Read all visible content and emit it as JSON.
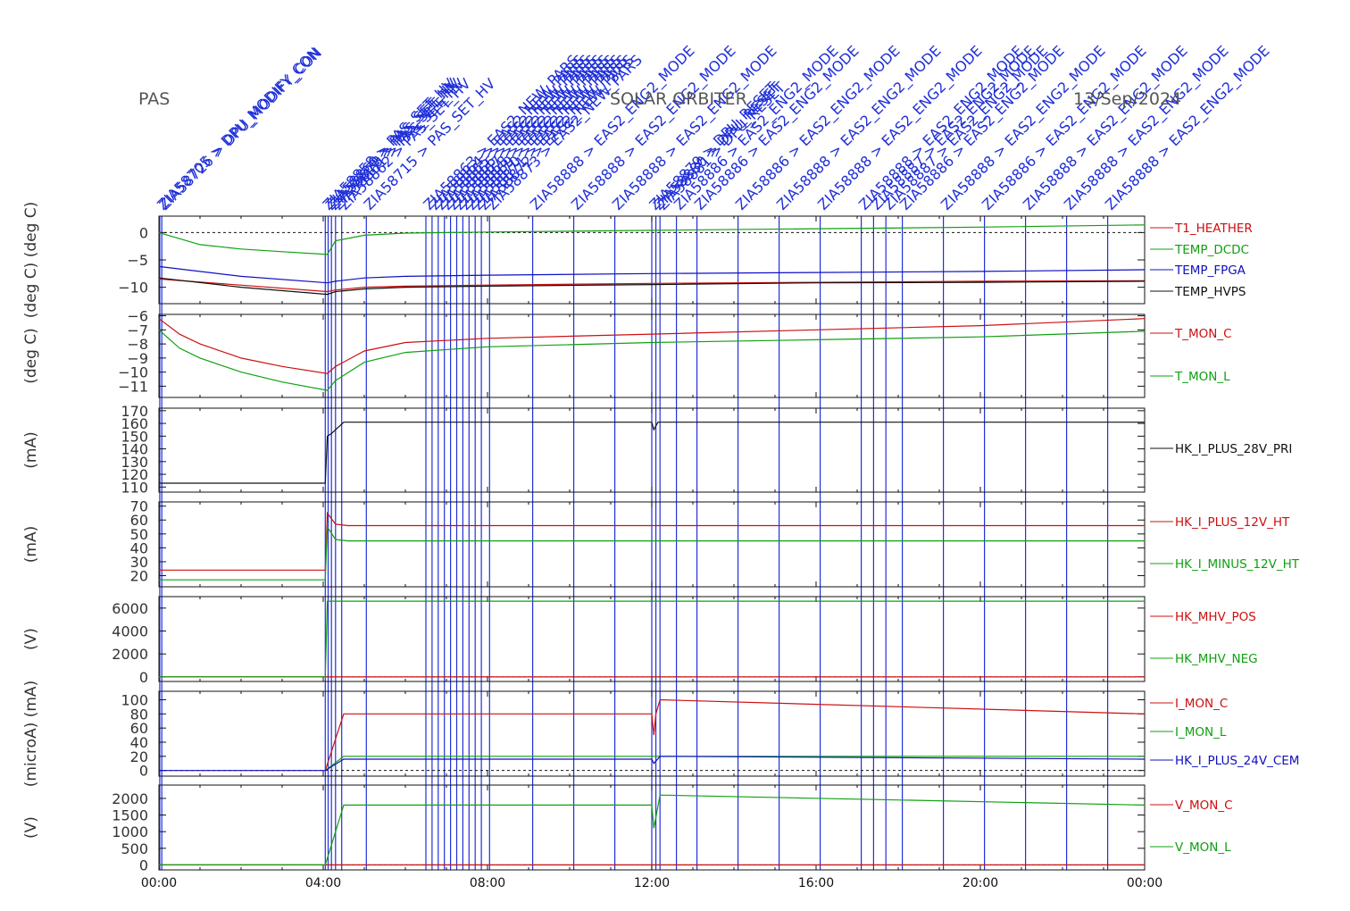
{
  "header": {
    "left": "PAS",
    "center": "SOLAR ORBITER",
    "right": "13/Sep/2024"
  },
  "colors": {
    "red": "#cc1010",
    "green": "#10a010",
    "blue": "#1010c0",
    "black": "#111111",
    "event": "#2030d8"
  },
  "chart_data": [
    {
      "type": "line",
      "ylabel": "(deg C) (deg C)",
      "yticks": [
        0,
        -5,
        -10
      ],
      "ylim": [
        -13,
        3
      ],
      "zero_line": 0,
      "series": [
        {
          "name": "T1_HEATHER",
          "color": "red",
          "x": [
            0,
            4.1,
            4.3,
            5,
            6,
            8,
            12,
            16,
            20,
            24
          ],
          "values": [
            -8.5,
            -10.8,
            -10.5,
            -10,
            -9.8,
            -9.6,
            -9.3,
            -9.1,
            -8.9,
            -8.8
          ]
        },
        {
          "name": "TEMP_DCDC",
          "color": "green",
          "x": [
            0,
            1,
            2,
            3,
            4.1,
            4.3,
            5,
            6,
            8,
            12,
            16,
            20,
            24
          ],
          "values": [
            0,
            -2.2,
            -3,
            -3.5,
            -4,
            -1.5,
            -0.5,
            -0.1,
            0.1,
            0.4,
            0.7,
            1,
            1.4
          ]
        },
        {
          "name": "TEMP_FPGA",
          "color": "blue",
          "x": [
            0,
            2,
            4.1,
            4.3,
            5,
            6,
            8,
            12,
            16,
            20,
            24
          ],
          "values": [
            -6.2,
            -8,
            -9.2,
            -8.9,
            -8.3,
            -8,
            -7.8,
            -7.5,
            -7.3,
            -7.1,
            -6.8
          ]
        },
        {
          "name": "TEMP_HVPS",
          "color": "black",
          "x": [
            0,
            2,
            4.1,
            4.3,
            5,
            6,
            8,
            12,
            16,
            20,
            24
          ],
          "values": [
            -8.3,
            -10,
            -11.3,
            -10.8,
            -10.3,
            -10,
            -9.8,
            -9.5,
            -9.2,
            -9.1,
            -8.9
          ]
        }
      ]
    },
    {
      "type": "line",
      "ylabel": "(deg C)",
      "yticks": [
        -6,
        -7,
        -8,
        -9,
        -10,
        -11
      ],
      "ylim": [
        -11.8,
        -5.9
      ],
      "series": [
        {
          "name": "T_MON_C",
          "color": "red",
          "x": [
            0,
            0.5,
            1,
            2,
            3,
            4.1,
            4.3,
            5,
            6,
            8,
            12,
            16,
            20,
            24
          ],
          "values": [
            -6.2,
            -7.3,
            -8,
            -9,
            -9.6,
            -10.1,
            -9.6,
            -8.5,
            -7.9,
            -7.6,
            -7.3,
            -7,
            -6.7,
            -6.2
          ]
        },
        {
          "name": "T_MON_L",
          "color": "green",
          "x": [
            0,
            0.5,
            1,
            2,
            3,
            4.1,
            4.3,
            5,
            6,
            8,
            12,
            16,
            20,
            24
          ],
          "values": [
            -7,
            -8.3,
            -9,
            -10,
            -10.7,
            -11.3,
            -10.6,
            -9.3,
            -8.6,
            -8.2,
            -7.9,
            -7.7,
            -7.5,
            -7.1
          ]
        }
      ]
    },
    {
      "type": "line",
      "ylabel": "(mA)",
      "yticks": [
        110,
        120,
        130,
        140,
        150,
        160,
        170
      ],
      "ylim": [
        106,
        172
      ],
      "series": [
        {
          "name": "HK_I_PLUS_28V_PRI",
          "color": "black",
          "x": [
            0,
            4.05,
            4.1,
            4.2,
            4.3,
            4.5,
            12,
            12.05,
            12.15,
            24
          ],
          "values": [
            113,
            113,
            150,
            152,
            155,
            161,
            161,
            155,
            161,
            161
          ]
        }
      ]
    },
    {
      "type": "line",
      "ylabel": "(mA)",
      "yticks": [
        20,
        30,
        40,
        50,
        60,
        70
      ],
      "ylim": [
        12,
        73
      ],
      "series": [
        {
          "name": "HK_I_PLUS_12V_HT",
          "color": "red",
          "x": [
            0,
            4.05,
            4.1,
            4.3,
            4.6,
            24
          ],
          "values": [
            24,
            24,
            65,
            57,
            56,
            56
          ]
        },
        {
          "name": "HK_I_MINUS_12V_HT",
          "color": "green",
          "x": [
            0,
            4.05,
            4.1,
            4.3,
            4.6,
            24
          ],
          "values": [
            17,
            17,
            55,
            46,
            45,
            45
          ]
        }
      ]
    },
    {
      "type": "line",
      "ylabel": "(V)",
      "yticks": [
        0,
        2000,
        4000,
        6000
      ],
      "ylim": [
        -400,
        7000
      ],
      "zero_line": 0,
      "series": [
        {
          "name": "HK_MHV_POS",
          "color": "red",
          "x": [
            0,
            24
          ],
          "values": [
            0,
            0
          ]
        },
        {
          "name": "HK_MHV_NEG",
          "color": "green",
          "x": [
            0,
            4.05,
            4.1,
            24
          ],
          "values": [
            0,
            0,
            6600,
            6600
          ]
        }
      ]
    },
    {
      "type": "line",
      "ylabel": "(microA) (mA)",
      "yticks": [
        0,
        20,
        40,
        60,
        80,
        100
      ],
      "ylim": [
        -8,
        112
      ],
      "zero_line": 0,
      "series": [
        {
          "name": "I_MON_C",
          "color": "red",
          "x": [
            4.05,
            4.5,
            12,
            12.05,
            12.1,
            12.2,
            24
          ],
          "values": [
            0,
            80,
            80,
            50,
            80,
            100,
            80
          ]
        },
        {
          "name": "I_MON_L",
          "color": "green",
          "x": [
            4.05,
            4.5,
            24
          ],
          "values": [
            0,
            20,
            20
          ]
        },
        {
          "name": "HK_I_PLUS_24V_CEM",
          "color": "blue",
          "x": [
            0,
            4.05,
            4.5,
            12,
            12.05,
            12.2,
            24
          ],
          "values": [
            0,
            0,
            16,
            16,
            10,
            20,
            16
          ]
        }
      ]
    },
    {
      "type": "line",
      "ylabel": "(V)",
      "yticks": [
        0,
        500,
        1000,
        1500,
        2000
      ],
      "ylim": [
        -150,
        2400
      ],
      "zero_line": 0,
      "series": [
        {
          "name": "V_MON_C",
          "color": "red",
          "x": [
            0,
            24
          ],
          "values": [
            0,
            0
          ]
        },
        {
          "name": "V_MON_L",
          "color": "green",
          "x": [
            0,
            4.05,
            4.5,
            12,
            12.05,
            12.2,
            24
          ],
          "values": [
            0,
            0,
            1800,
            1800,
            1100,
            2100,
            1800
          ]
        }
      ]
    }
  ],
  "x_axis": {
    "ticks": [
      0,
      4,
      8,
      12,
      16,
      20,
      24
    ],
    "labels": [
      "00:00",
      "04:00",
      "08:00",
      "12:00",
      "16:00",
      "20:00",
      "00:00"
    ]
  },
  "events": [
    {
      "t": 0.02,
      "label": "ZIA58705 > DPU_MODIFY_CON"
    },
    {
      "t": 0.07,
      "label": "ZIA58726 > DPU_MODIFY_CON"
    },
    {
      "t": 4.05,
      "label": "ZIA58858 > PAS_SET_HV"
    },
    {
      "t": 4.12,
      "label": "ZIA58860 > PAS_SET_HV"
    },
    {
      "t": 4.2,
      "label": "ZIA58878 > PAS_SET_HV"
    },
    {
      "t": 4.3,
      "label": "ZIA58861 > PAS_SET_HV"
    },
    {
      "t": 4.45,
      "label": "ZIA58862 > PAS_SET_HV"
    },
    {
      "t": 5.05,
      "label": "ZIA58715 > PAS_SET_HV"
    },
    {
      "t": 6.5,
      "label": "ZIA58863 > EAS2_NEW_PARS"
    },
    {
      "t": 6.65,
      "label": "ZIA58864 > EAS2_NEW_PARS"
    },
    {
      "t": 6.8,
      "label": "ZIA58865 > EAS2_NEW_PARS"
    },
    {
      "t": 6.95,
      "label": "ZIA58866 > EAS2_NEW_PARS"
    },
    {
      "t": 7.1,
      "label": "ZIA58867 > EAS2_NEW_PARS"
    },
    {
      "t": 7.25,
      "label": "ZIA58868 > EAS2_NEW_PARS"
    },
    {
      "t": 7.4,
      "label": "ZIA58869 > EAS2_NEW_PARS"
    },
    {
      "t": 7.55,
      "label": "ZIA58870 > EAS2_NEW_PARS"
    },
    {
      "t": 7.7,
      "label": "ZIA58871 > EAS2_NEW_PARS"
    },
    {
      "t": 7.85,
      "label": "ZIA58872 > EAS2_NEW_PARS"
    },
    {
      "t": 8.05,
      "label": "ZIA58873 > EAS2_NEW_PARS"
    },
    {
      "t": 9.1,
      "label": "ZIA58888 > EAS2_ENG2_MODE"
    },
    {
      "t": 10.1,
      "label": "ZIA58888 > EAS2_ENG2_MODE"
    },
    {
      "t": 11.1,
      "label": "ZIA58888 > EAS2_ENG2_MODE"
    },
    {
      "t": 12.0,
      "label": "ZIA58879 > DPU_RESET"
    },
    {
      "t": 12.1,
      "label": "ZIA58880 > DPU_RESET"
    },
    {
      "t": 12.2,
      "label": "ZIA58881 > DPU_RESET"
    },
    {
      "t": 12.6,
      "label": "ZIA58886 > EAS2_ENG2_MODE"
    },
    {
      "t": 13.1,
      "label": "ZIA58886 > EAS2_ENG2_MODE"
    },
    {
      "t": 14.1,
      "label": "ZIA58886 > EAS2_ENG2_MODE"
    },
    {
      "t": 15.1,
      "label": "ZIA58888 > EAS2_ENG2_MODE"
    },
    {
      "t": 16.1,
      "label": "ZIA58888 > EAS2_ENG2_MODE"
    },
    {
      "t": 17.1,
      "label": "ZIA58888 > EAS2_ENG2_MODE"
    },
    {
      "t": 17.4,
      "label": "ZIA58887 > EAS2_ENG2_MODE"
    },
    {
      "t": 17.7,
      "label": "ZIA58887 > EAS2_ENG2_MODE"
    },
    {
      "t": 18.1,
      "label": "ZIA58886 > EAS2_ENG2_MODE"
    },
    {
      "t": 19.1,
      "label": "ZIA58888 > EAS2_ENG2_MODE"
    },
    {
      "t": 20.1,
      "label": "ZIA58886 > EAS2_ENG2_MODE"
    },
    {
      "t": 21.1,
      "label": "ZIA58888 > EAS2_ENG2_MODE"
    },
    {
      "t": 22.1,
      "label": "ZIA58888 > EAS2_ENG2_MODE"
    },
    {
      "t": 23.1,
      "label": "ZIA58888 > EAS2_ENG2_MODE"
    }
  ]
}
